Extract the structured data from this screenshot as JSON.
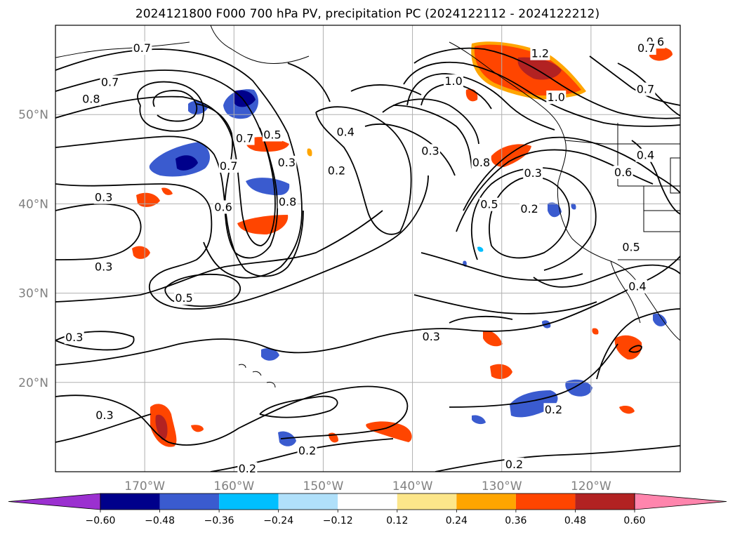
{
  "title": "2024121800 F000 700 hPa PV, precipitation PC (2024122112 - 2024122212)",
  "map": {
    "lon_range": [
      -180,
      -110
    ],
    "lat_range": [
      10,
      60
    ],
    "lat_ticks": [
      {
        "value": 50,
        "label": "50°N"
      },
      {
        "value": 40,
        "label": "40°N"
      },
      {
        "value": 30,
        "label": "30°N"
      },
      {
        "value": 20,
        "label": "20°N"
      }
    ],
    "lon_ticks": [
      {
        "value": -170,
        "label": "170°W"
      },
      {
        "value": -160,
        "label": "160°W"
      },
      {
        "value": -150,
        "label": "150°W"
      },
      {
        "value": -140,
        "label": "140°W"
      },
      {
        "value": -130,
        "label": "130°W"
      },
      {
        "value": -120,
        "label": "120°W"
      }
    ],
    "grid": true,
    "coastline_color": "#000000"
  },
  "contour_labels": [
    {
      "text": "0.7",
      "lon": -170.3,
      "lat": 57.4
    },
    {
      "text": "0.7",
      "lon": -173.9,
      "lat": 53.6
    },
    {
      "text": "0.8",
      "lon": -176.0,
      "lat": 51.7
    },
    {
      "text": "1.0",
      "lon": -135.4,
      "lat": 53.7
    },
    {
      "text": "1.2",
      "lon": -125.7,
      "lat": 56.8
    },
    {
      "text": "1.0",
      "lon": -123.9,
      "lat": 51.9
    },
    {
      "text": "0.6",
      "lon": -112.8,
      "lat": 58.1
    },
    {
      "text": "0.7",
      "lon": -113.8,
      "lat": 57.4
    },
    {
      "text": "0.7",
      "lon": -113.9,
      "lat": 52.8
    },
    {
      "text": "0.4",
      "lon": -147.5,
      "lat": 48.0
    },
    {
      "text": "0.3",
      "lon": -138.0,
      "lat": 45.9
    },
    {
      "text": "0.2",
      "lon": -148.5,
      "lat": 43.7
    },
    {
      "text": "0.5",
      "lon": -155.7,
      "lat": 47.7
    },
    {
      "text": "0.7",
      "lon": -158.8,
      "lat": 47.3
    },
    {
      "text": "0.3",
      "lon": -154.1,
      "lat": 44.6
    },
    {
      "text": "0.7",
      "lon": -160.6,
      "lat": 44.2
    },
    {
      "text": "0.6",
      "lon": -161.2,
      "lat": 39.6
    },
    {
      "text": "0.8",
      "lon": -154.0,
      "lat": 40.2
    },
    {
      "text": "0.3",
      "lon": -174.6,
      "lat": 40.7
    },
    {
      "text": "0.3",
      "lon": -174.6,
      "lat": 32.9
    },
    {
      "text": "0.5",
      "lon": -165.6,
      "lat": 29.4
    },
    {
      "text": "0.3",
      "lon": -177.9,
      "lat": 25.0
    },
    {
      "text": "0.3",
      "lon": -137.9,
      "lat": 25.1
    },
    {
      "text": "0.8",
      "lon": -132.3,
      "lat": 44.6
    },
    {
      "text": "0.3",
      "lon": -126.5,
      "lat": 43.4
    },
    {
      "text": "0.5",
      "lon": -131.4,
      "lat": 39.9
    },
    {
      "text": "0.2",
      "lon": -126.9,
      "lat": 39.4
    },
    {
      "text": "0.6",
      "lon": -116.4,
      "lat": 43.5
    },
    {
      "text": "0.4",
      "lon": -113.9,
      "lat": 45.4
    },
    {
      "text": "0.5",
      "lon": -115.5,
      "lat": 35.1
    },
    {
      "text": "0.4",
      "lon": -114.8,
      "lat": 30.7
    },
    {
      "text": "0.2",
      "lon": -124.2,
      "lat": 16.9
    },
    {
      "text": "0.3",
      "lon": -174.5,
      "lat": 16.3
    },
    {
      "text": "0.2",
      "lon": -151.8,
      "lat": 12.3
    },
    {
      "text": "0.2",
      "lon": -158.5,
      "lat": 10.3
    },
    {
      "text": "0.2",
      "lon": -128.6,
      "lat": 10.8
    }
  ],
  "colorbar": {
    "ticks": [
      "−0.60",
      "−0.48",
      "−0.36",
      "−0.24",
      "−0.12",
      "0.12",
      "0.24",
      "0.36",
      "0.48",
      "0.60"
    ],
    "colors": [
      "#9b30d0",
      "#00008b",
      "#3a5bcf",
      "#00bfff",
      "#b0e0fa",
      "#ffffff",
      "#fce68a",
      "#ffa500",
      "#ff4500",
      "#b22222",
      "#ff85ad"
    ]
  }
}
